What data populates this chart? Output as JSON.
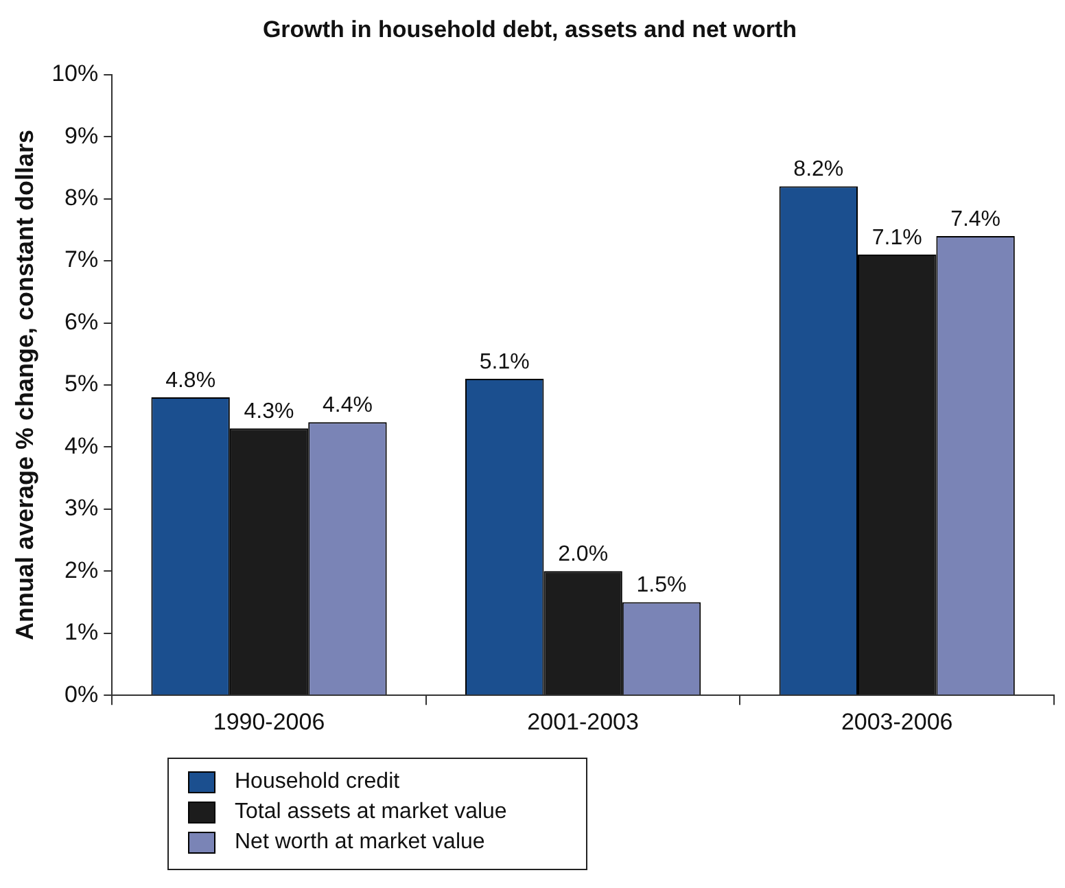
{
  "chart_data": {
    "type": "bar",
    "title": "Growth in household debt, assets and net worth",
    "ylabel": "Annual average % change, constant dollars",
    "categories": [
      "1990-2006",
      "2001-2003",
      "2003-2006"
    ],
    "series": [
      {
        "name": "Household credit",
        "color": "#1b4f8f",
        "values": [
          4.8,
          5.1,
          8.2
        ],
        "value_labels": [
          "4.8%",
          "5.1%",
          "8.2%"
        ]
      },
      {
        "name": "Total assets at market value",
        "color": "#1c1c1c",
        "values": [
          4.3,
          2.0,
          7.1
        ],
        "value_labels": [
          "4.3%",
          "2.0%",
          "7.1%"
        ]
      },
      {
        "name": "Net worth at market value",
        "color": "#7a84b6",
        "values": [
          4.4,
          1.5,
          7.4
        ],
        "value_labels": [
          "4.4%",
          "1.5%",
          "7.4%"
        ]
      }
    ],
    "ylim": [
      0,
      10
    ],
    "yticks": [
      {
        "value": 0,
        "label": "0%"
      },
      {
        "value": 1,
        "label": "1%"
      },
      {
        "value": 2,
        "label": "2%"
      },
      {
        "value": 3,
        "label": "3%"
      },
      {
        "value": 4,
        "label": "4%"
      },
      {
        "value": 5,
        "label": "5%"
      },
      {
        "value": 6,
        "label": "6%"
      },
      {
        "value": 7,
        "label": "7%"
      },
      {
        "value": 8,
        "label": "8%"
      },
      {
        "value": 9,
        "label": "9%"
      },
      {
        "value": 10,
        "label": "10%"
      }
    ],
    "grid": false,
    "legend": "bottom left"
  }
}
